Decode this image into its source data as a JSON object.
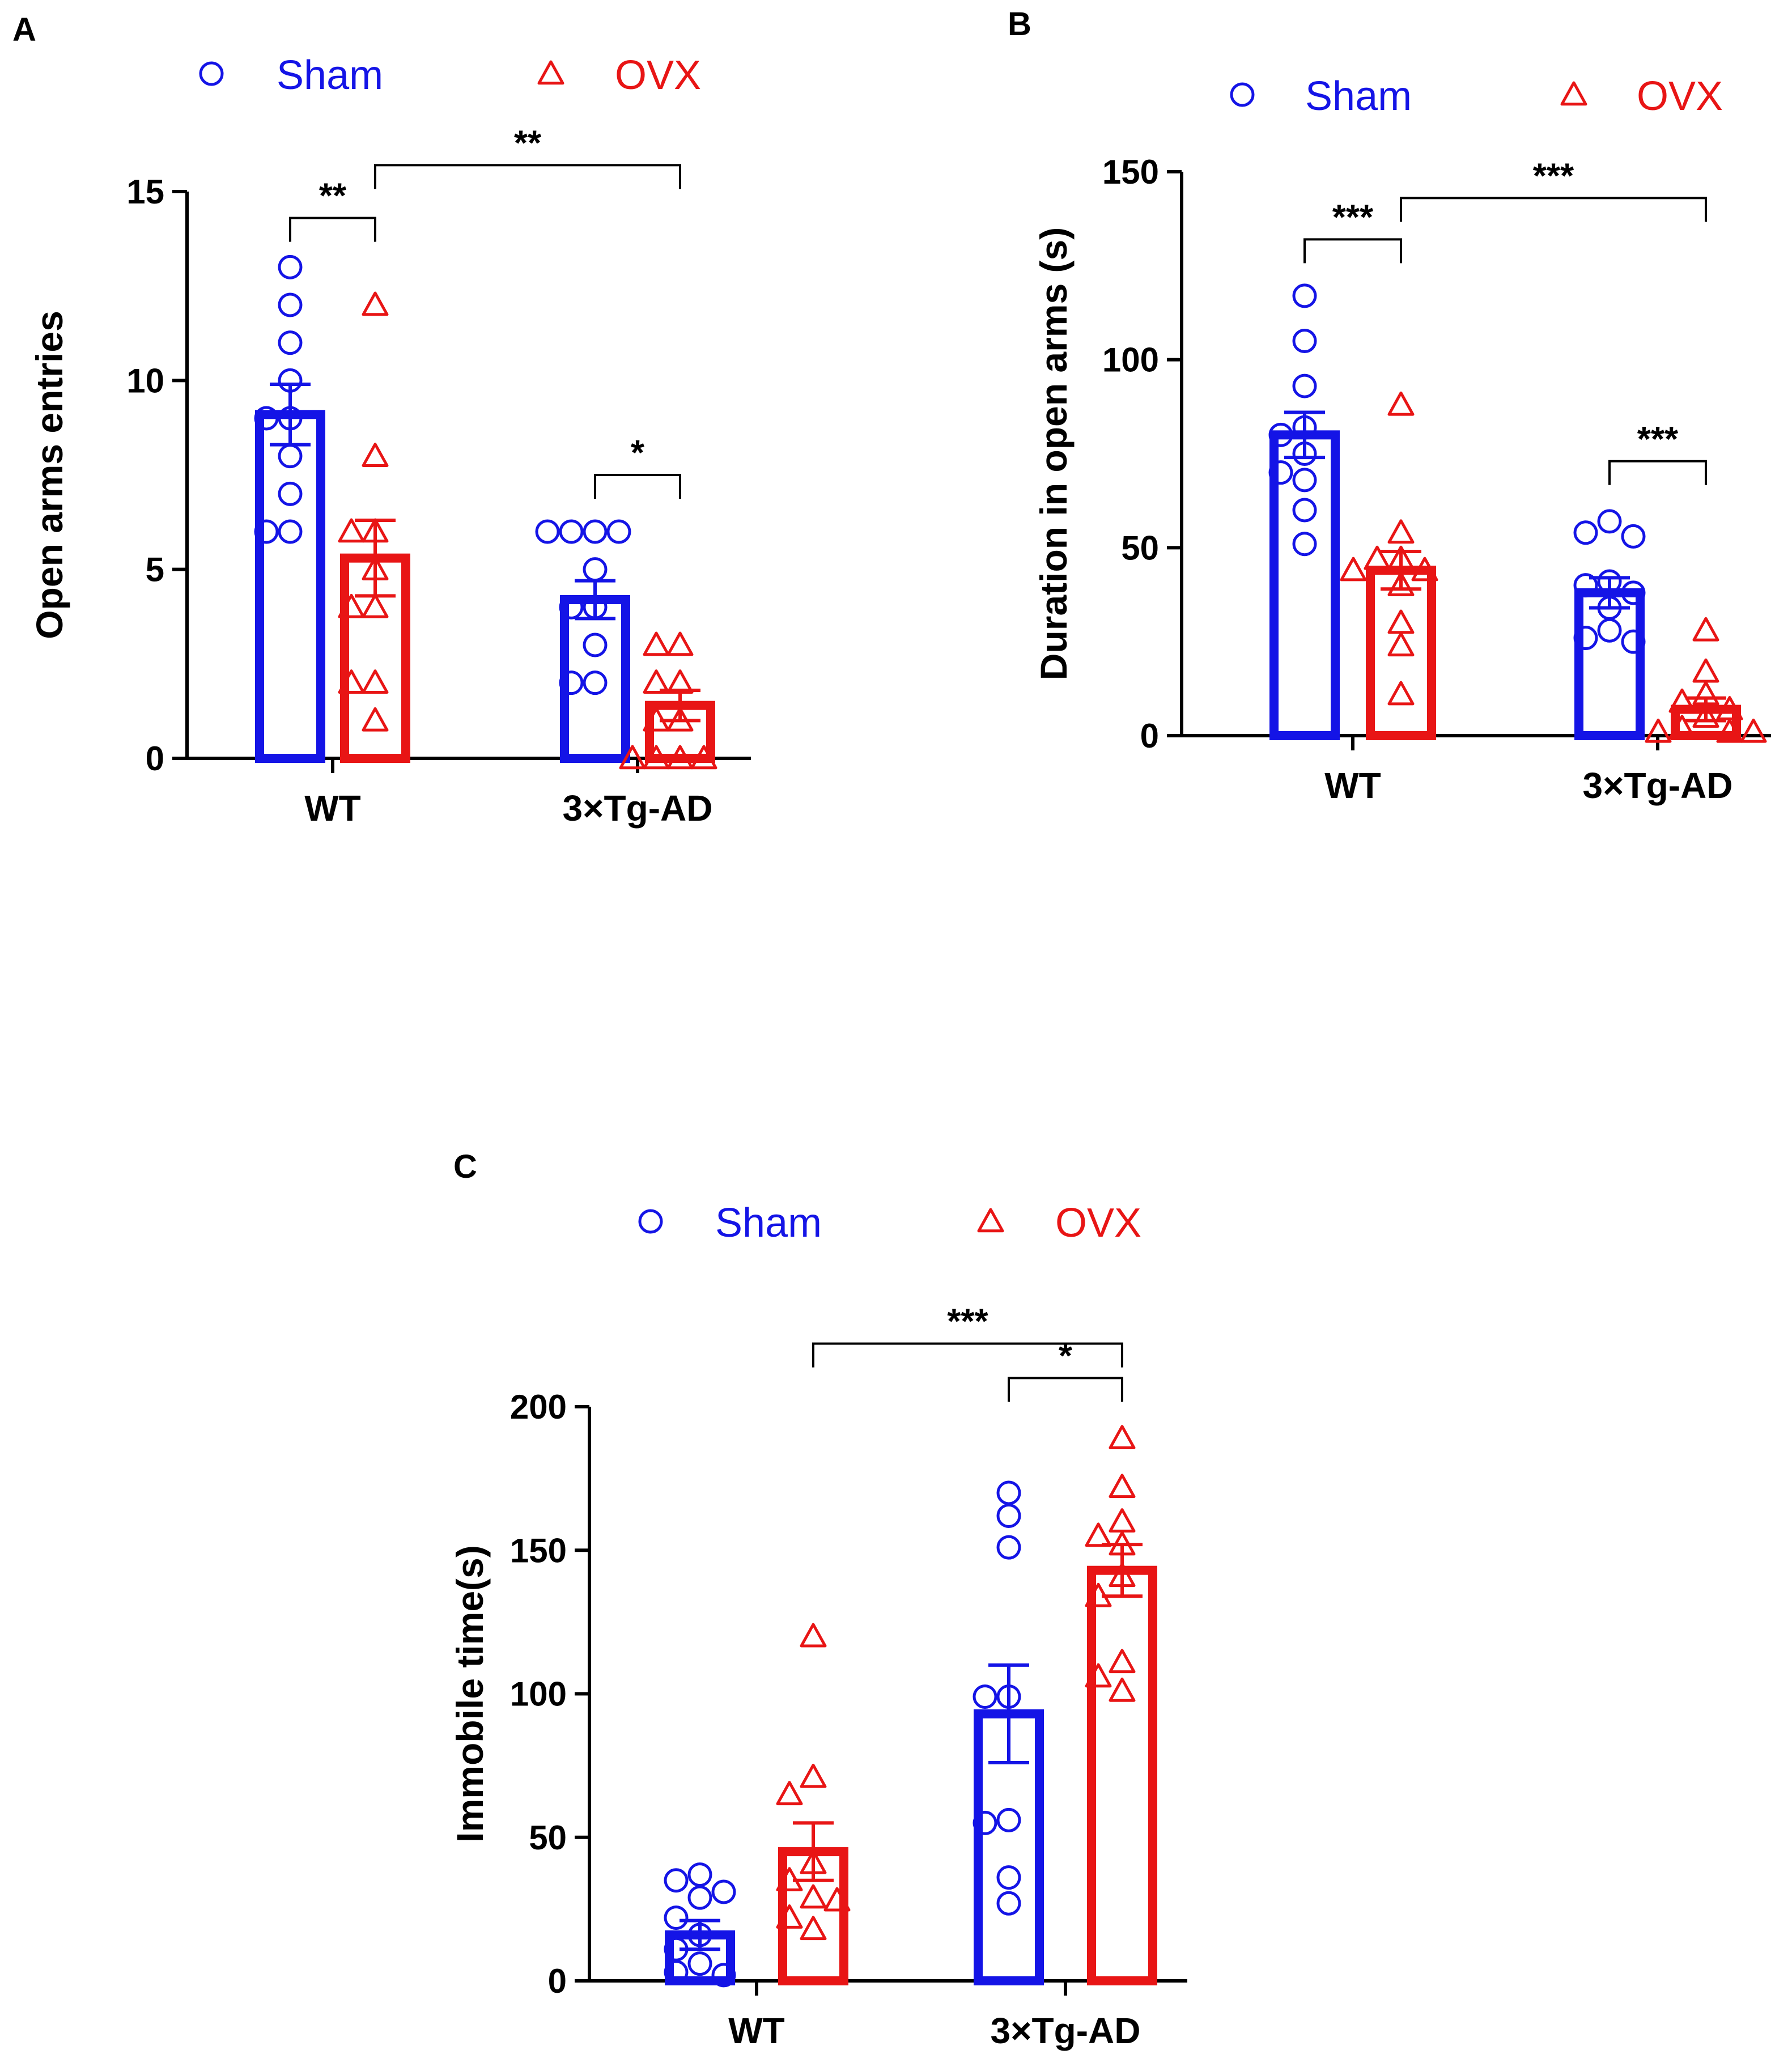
{
  "colors": {
    "sham": "#1414e6",
    "ovx": "#e81515",
    "axis": "#000000"
  },
  "chart_data": [
    {
      "id": "A",
      "panel_label": "A",
      "type": "bar",
      "ylabel": "Open arms entries",
      "xlabel": "",
      "categories": [
        "WT",
        "3×Tg-AD"
      ],
      "ylim": [
        0,
        15
      ],
      "yticks": [
        0,
        5,
        10,
        15
      ],
      "legend": {
        "placement": "top",
        "entries": [
          "Sham",
          "OVX"
        ]
      },
      "series": [
        {
          "name": "Sham",
          "marker": "circle",
          "values": [
            9.1,
            4.2
          ],
          "sem": [
            0.8,
            0.5
          ],
          "points": [
            [
              13,
              12,
              11,
              10,
              9,
              9,
              8,
              7,
              6,
              6
            ],
            [
              6,
              6,
              6,
              6,
              5,
              4,
              4,
              3,
              2,
              2
            ]
          ]
        },
        {
          "name": "OVX",
          "marker": "triangle",
          "values": [
            5.3,
            1.4
          ],
          "sem": [
            1.0,
            0.4
          ],
          "points": [
            [
              12,
              8,
              6,
              6,
              5,
              4,
              4,
              2,
              2,
              1
            ],
            [
              3,
              3,
              2,
              2,
              1,
              1,
              0,
              0,
              0,
              0
            ]
          ]
        }
      ],
      "annotations": [
        {
          "text": "**",
          "from": [
            0,
            0
          ],
          "to": [
            0,
            1
          ],
          "y": 14.3
        },
        {
          "text": "**",
          "from": [
            0,
            1
          ],
          "to": [
            1,
            1
          ],
          "y": 15.7
        },
        {
          "text": "*",
          "from": [
            1,
            0
          ],
          "to": [
            1,
            1
          ],
          "y": 7.5
        }
      ]
    },
    {
      "id": "B",
      "panel_label": "B",
      "type": "bar",
      "ylabel": "Duration in open arms (s)",
      "xlabel": "",
      "categories": [
        "WT",
        "3×Tg-AD"
      ],
      "ylim": [
        0,
        150
      ],
      "yticks": [
        0,
        50,
        100,
        150
      ],
      "legend": {
        "placement": "top",
        "entries": [
          "Sham",
          "OVX"
        ]
      },
      "series": [
        {
          "name": "Sham",
          "marker": "circle",
          "values": [
            80,
            38
          ],
          "sem": [
            6,
            4
          ],
          "points": [
            [
              117,
              105,
              93,
              82,
              80,
              75,
              70,
              68,
              60,
              51
            ],
            [
              57,
              54,
              53,
              41,
              40,
              38,
              34,
              28,
              26,
              25
            ]
          ]
        },
        {
          "name": "OVX",
          "marker": "triangle",
          "values": [
            44,
            7
          ],
          "sem": [
            5,
            3
          ],
          "points": [
            [
              88,
              54,
              47,
              47,
              44,
              44,
              40,
              30,
              24,
              11
            ],
            [
              28,
              17,
              11,
              9,
              7,
              5,
              2,
              1,
              1,
              1
            ]
          ]
        }
      ],
      "annotations": [
        {
          "text": "***",
          "from": [
            0,
            0
          ],
          "to": [
            0,
            1
          ],
          "y": 132
        },
        {
          "text": "***",
          "from": [
            0,
            1
          ],
          "to": [
            1,
            1
          ],
          "y": 143
        },
        {
          "text": "***",
          "from": [
            1,
            0
          ],
          "to": [
            1,
            1
          ],
          "y": 73
        }
      ]
    },
    {
      "id": "C",
      "panel_label": "C",
      "type": "bar",
      "ylabel": "Immobile time(s)",
      "xlabel": "",
      "categories": [
        "WT",
        "3×Tg-AD"
      ],
      "ylim": [
        0,
        200
      ],
      "yticks": [
        0,
        50,
        100,
        150,
        200
      ],
      "legend": {
        "placement": "top",
        "entries": [
          "Sham",
          "OVX"
        ]
      },
      "series": [
        {
          "name": "Sham",
          "marker": "circle",
          "values": [
            16,
            93
          ],
          "sem": [
            5,
            17
          ],
          "points": [
            [
              37,
              35,
              31,
              29,
              22,
              16,
              11,
              6,
              3,
              2
            ],
            [
              170,
              162,
              151,
              99,
              99,
              56,
              55,
              36,
              27
            ]
          ]
        },
        {
          "name": "OVX",
          "marker": "triangle",
          "values": [
            45,
            143
          ],
          "sem": [
            10,
            9
          ],
          "points": [
            [
              120,
              71,
              65,
              41,
              35,
              29,
              28,
              22,
              18
            ],
            [
              189,
              172,
              160,
              155,
              152,
              141,
              134,
              111,
              106,
              101
            ]
          ]
        }
      ],
      "annotations": [
        {
          "text": "***",
          "from": [
            0,
            1
          ],
          "to": [
            1,
            1
          ],
          "y": 222
        },
        {
          "text": "*",
          "from": [
            1,
            0
          ],
          "to": [
            1,
            1
          ],
          "y": 210
        }
      ]
    }
  ]
}
